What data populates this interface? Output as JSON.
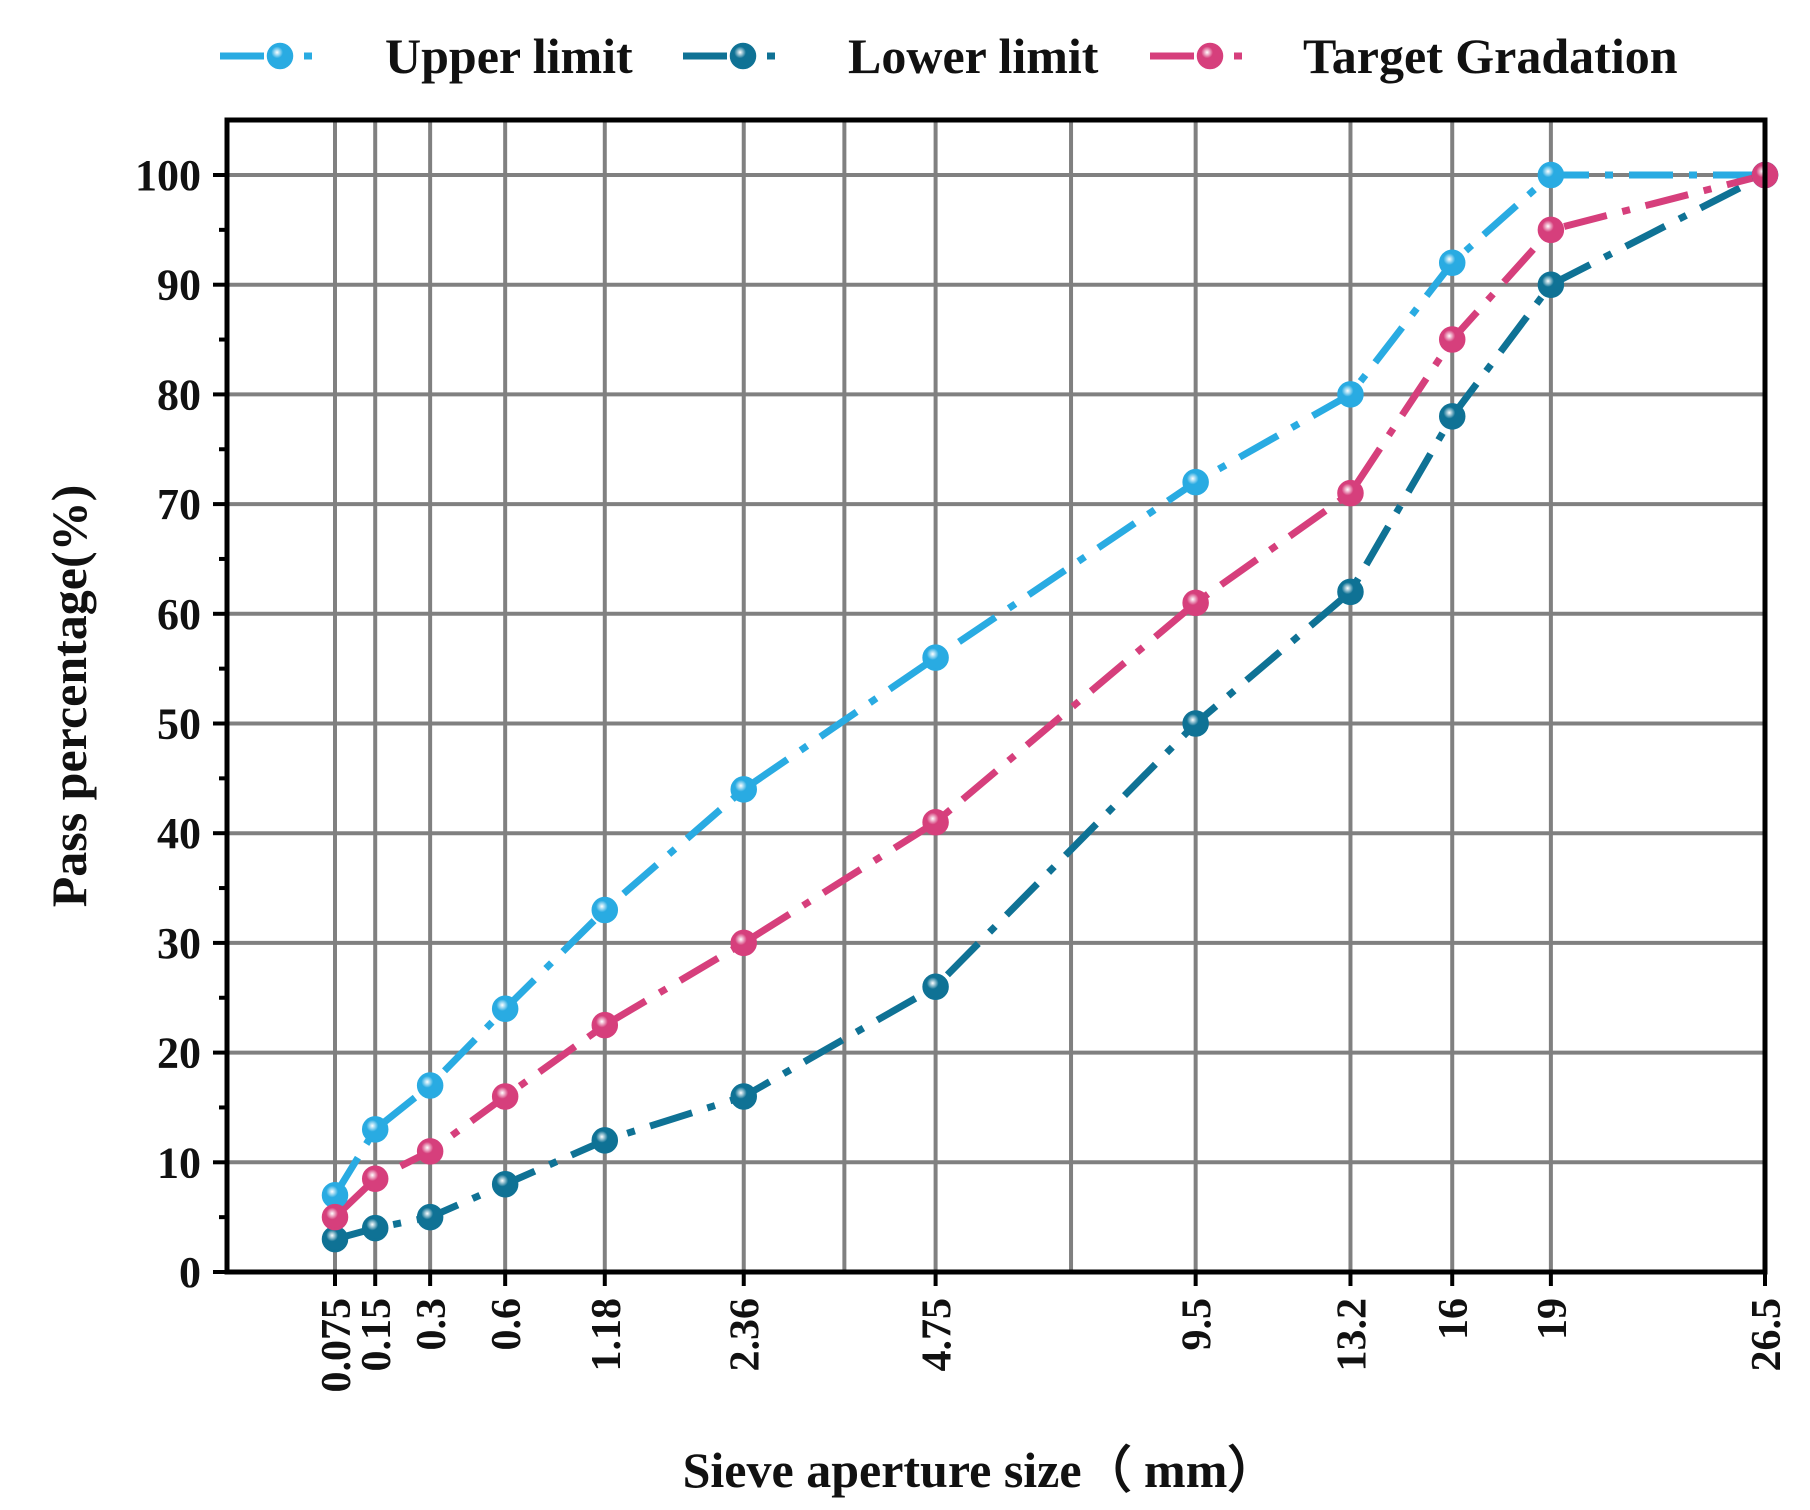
{
  "chart_data": {
    "type": "line",
    "xlabel": "Sieve aperture size（ mm）",
    "ylabel": "Pass percentage(%)",
    "ylim": [
      0,
      100
    ],
    "yticks": [
      "0",
      "10",
      "20",
      "30",
      "40",
      "50",
      "60",
      "70",
      "80",
      "90",
      "100"
    ],
    "x_scale": "power 0.45 (gradation chart)",
    "x_range": [
      0.075,
      26.5
    ],
    "categories": [
      "0.075",
      "0.15",
      "0.3",
      "0.6",
      "1.18",
      "2.36",
      "4.75",
      "9.5",
      "13.2",
      "16",
      "19",
      "26.5"
    ],
    "x": [
      0.075,
      0.15,
      0.3,
      0.6,
      1.18,
      2.36,
      4.75,
      9.5,
      13.2,
      16,
      19,
      26.5
    ],
    "grid": true,
    "legend_position": "top",
    "series": [
      {
        "name": "Upper limit",
        "color": "#29abe2",
        "values": [
          7,
          13,
          17,
          24,
          33,
          44,
          56,
          72,
          80,
          92,
          100,
          100
        ]
      },
      {
        "name": "Lower limit",
        "color": "#0f7295",
        "values": [
          3,
          4,
          5,
          8,
          12,
          16,
          26,
          50,
          62,
          78,
          90,
          100
        ]
      },
      {
        "name": "Target Gradation",
        "color": "#d63f7c",
        "values": [
          5,
          8.5,
          11,
          16,
          22.5,
          30,
          41,
          61,
          71,
          85,
          95,
          100
        ]
      }
    ]
  }
}
